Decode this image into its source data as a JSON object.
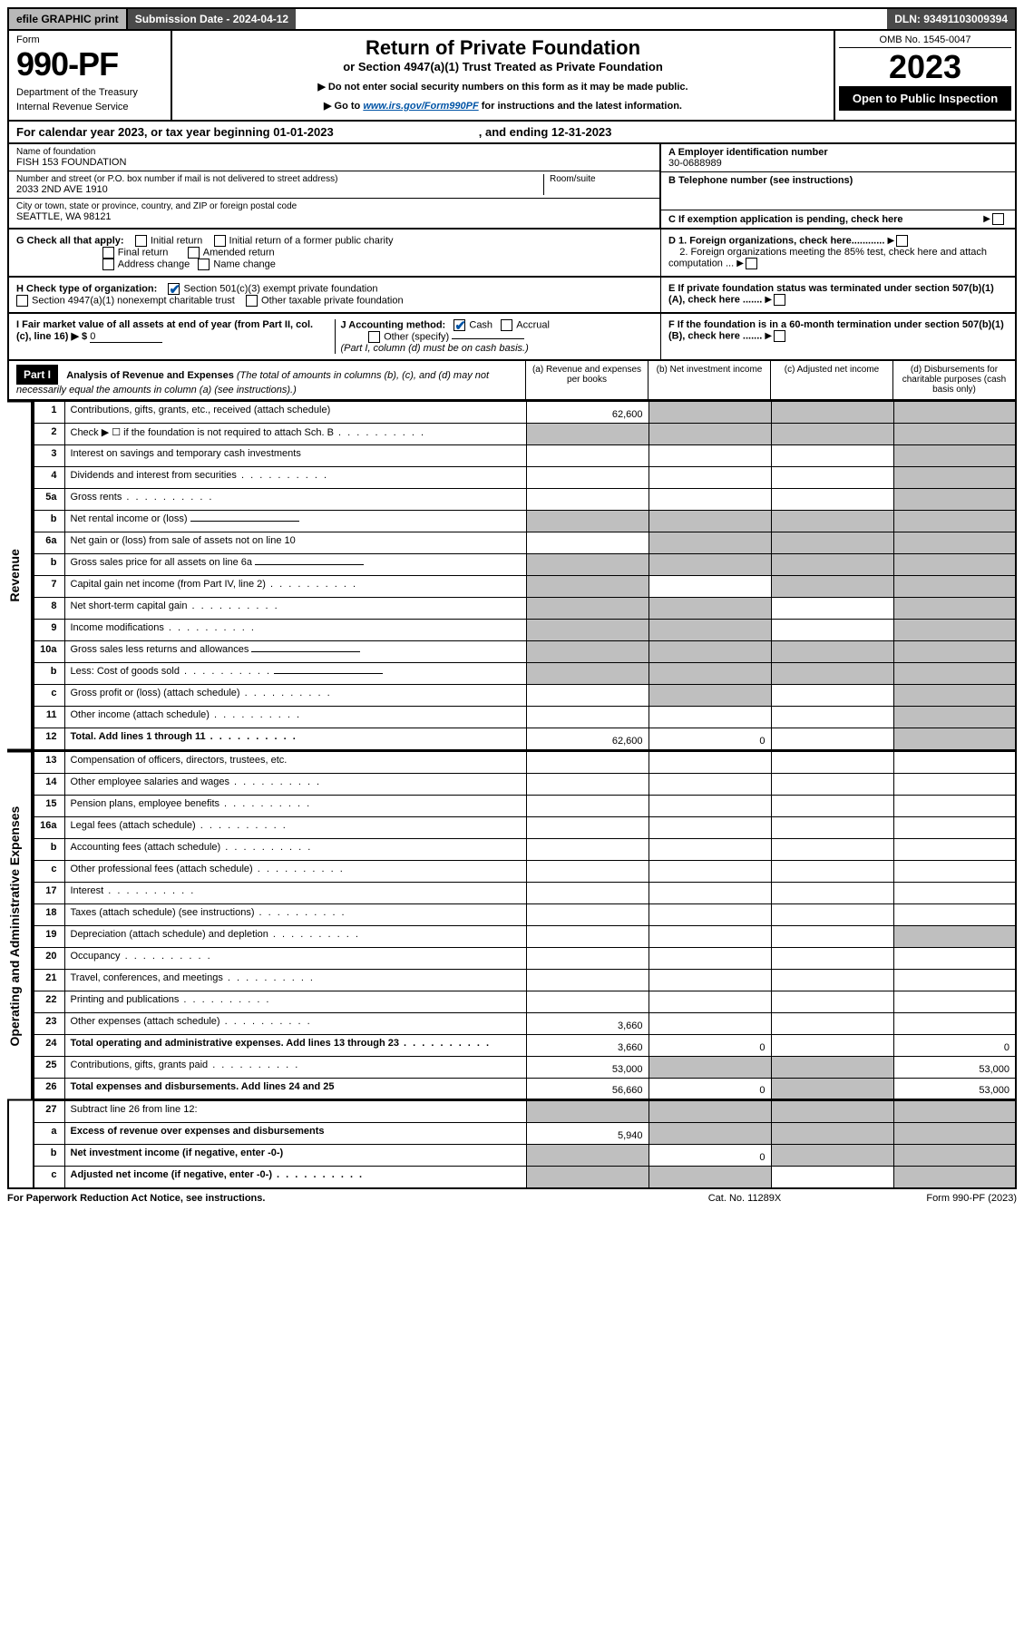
{
  "topbar": {
    "efile": "efile GRAPHIC print",
    "subdate_label": "Submission Date - 2024-04-12",
    "dln": "DLN: 93491103009394"
  },
  "header": {
    "form_label": "Form",
    "form_number": "990-PF",
    "dept": "Department of the Treasury",
    "irs": "Internal Revenue Service",
    "title": "Return of Private Foundation",
    "subtitle": "or Section 4947(a)(1) Trust Treated as Private Foundation",
    "note1": "▶ Do not enter social security numbers on this form as it may be made public.",
    "note2_pre": "▶ Go to ",
    "note2_link": "www.irs.gov/Form990PF",
    "note2_post": " for instructions and the latest information.",
    "omb": "OMB No. 1545-0047",
    "year": "2023",
    "openpub": "Open to Public Inspection"
  },
  "calyear": {
    "pre": "For calendar year 2023, or tax year beginning 01-01-2023",
    "mid": ", and ending 12-31-2023"
  },
  "ident": {
    "name_label": "Name of foundation",
    "name": "FISH 153 FOUNDATION",
    "addr_label": "Number and street (or P.O. box number if mail is not delivered to street address)",
    "addr": "2033 2ND AVE 1910",
    "room_label": "Room/suite",
    "city_label": "City or town, state or province, country, and ZIP or foreign postal code",
    "city": "SEATTLE, WA  98121",
    "a_label": "A Employer identification number",
    "a_val": "30-0688989",
    "b_label": "B Telephone number (see instructions)",
    "c_label": "C If exemption application is pending, check here"
  },
  "opts": {
    "g_label": "G Check all that apply:",
    "g_initial": "Initial return",
    "g_initial_former": "Initial return of a former public charity",
    "g_final": "Final return",
    "g_amended": "Amended return",
    "g_addrchg": "Address change",
    "g_namechg": "Name change",
    "h_label": "H Check type of organization:",
    "h_501c3": "Section 501(c)(3) exempt private foundation",
    "h_4947": "Section 4947(a)(1) nonexempt charitable trust",
    "h_other": "Other taxable private foundation",
    "i_label": "I Fair market value of all assets at end of year (from Part II, col. (c), line 16) ▶ $",
    "i_val": "0",
    "j_label": "J Accounting method:",
    "j_cash": "Cash",
    "j_accrual": "Accrual",
    "j_other": "Other (specify)",
    "j_note": "(Part I, column (d) must be on cash basis.)",
    "d1": "D 1. Foreign organizations, check here............",
    "d2": "2. Foreign organizations meeting the 85% test, check here and attach computation ...",
    "e": "E  If private foundation status was terminated under section 507(b)(1)(A), check here .......",
    "f": "F  If the foundation is in a 60-month termination under section 507(b)(1)(B), check here .......",
    "arrow": "▶"
  },
  "part1": {
    "label": "Part I",
    "title": "Analysis of Revenue and Expenses",
    "note": " (The total of amounts in columns (b), (c), and (d) may not necessarily equal the amounts in column (a) (see instructions).)",
    "col_a": "(a)   Revenue and expenses per books",
    "col_b": "(b)   Net investment income",
    "col_c": "(c)   Adjusted net income",
    "col_d": "(d)   Disbursements for charitable purposes (cash basis only)"
  },
  "sections": {
    "revenue": "Revenue",
    "opex": "Operating and Administrative Expenses"
  },
  "rows": [
    {
      "n": "1",
      "t": "Contributions, gifts, grants, etc., received (attach schedule)",
      "a": "62,600",
      "grey": [
        "b",
        "c",
        "d"
      ]
    },
    {
      "n": "2",
      "t": "Check ▶ ☐ if the foundation is not required to attach Sch. B",
      "dots": true,
      "grey": [
        "a",
        "b",
        "c",
        "d"
      ]
    },
    {
      "n": "3",
      "t": "Interest on savings and temporary cash investments",
      "grey": [
        "d"
      ]
    },
    {
      "n": "4",
      "t": "Dividends and interest from securities",
      "dots": true,
      "grey": [
        "d"
      ]
    },
    {
      "n": "5a",
      "t": "Gross rents",
      "dots": true,
      "grey": [
        "d"
      ]
    },
    {
      "n": "b",
      "t": "Net rental income or (loss)",
      "grey": [
        "a",
        "b",
        "c",
        "d"
      ],
      "ul": true
    },
    {
      "n": "6a",
      "t": "Net gain or (loss) from sale of assets not on line 10",
      "grey": [
        "b",
        "c",
        "d"
      ]
    },
    {
      "n": "b",
      "t": "Gross sales price for all assets on line 6a",
      "grey": [
        "a",
        "b",
        "c",
        "d"
      ],
      "ul": true
    },
    {
      "n": "7",
      "t": "Capital gain net income (from Part IV, line 2)",
      "dots": true,
      "grey": [
        "a",
        "c",
        "d"
      ]
    },
    {
      "n": "8",
      "t": "Net short-term capital gain",
      "dots": true,
      "grey": [
        "a",
        "b",
        "d"
      ]
    },
    {
      "n": "9",
      "t": "Income modifications",
      "dots": true,
      "grey": [
        "a",
        "b",
        "d"
      ]
    },
    {
      "n": "10a",
      "t": "Gross sales less returns and allowances",
      "grey": [
        "a",
        "b",
        "c",
        "d"
      ],
      "ul": true
    },
    {
      "n": "b",
      "t": "Less: Cost of goods sold",
      "dots": true,
      "grey": [
        "a",
        "b",
        "c",
        "d"
      ],
      "ul": true
    },
    {
      "n": "c",
      "t": "Gross profit or (loss) (attach schedule)",
      "dots": true,
      "grey": [
        "b",
        "d"
      ]
    },
    {
      "n": "11",
      "t": "Other income (attach schedule)",
      "dots": true,
      "grey": [
        "d"
      ]
    },
    {
      "n": "12",
      "t": "Total. Add lines 1 through 11",
      "dots": true,
      "bold": true,
      "a": "62,600",
      "b": "0",
      "grey": [
        "d"
      ]
    }
  ],
  "rows2": [
    {
      "n": "13",
      "t": "Compensation of officers, directors, trustees, etc."
    },
    {
      "n": "14",
      "t": "Other employee salaries and wages",
      "dots": true
    },
    {
      "n": "15",
      "t": "Pension plans, employee benefits",
      "dots": true
    },
    {
      "n": "16a",
      "t": "Legal fees (attach schedule)",
      "dots": true
    },
    {
      "n": "b",
      "t": "Accounting fees (attach schedule)",
      "dots": true
    },
    {
      "n": "c",
      "t": "Other professional fees (attach schedule)",
      "dots": true
    },
    {
      "n": "17",
      "t": "Interest",
      "dots": true
    },
    {
      "n": "18",
      "t": "Taxes (attach schedule) (see instructions)",
      "dots": true
    },
    {
      "n": "19",
      "t": "Depreciation (attach schedule) and depletion",
      "dots": true,
      "grey": [
        "d"
      ]
    },
    {
      "n": "20",
      "t": "Occupancy",
      "dots": true
    },
    {
      "n": "21",
      "t": "Travel, conferences, and meetings",
      "dots": true
    },
    {
      "n": "22",
      "t": "Printing and publications",
      "dots": true
    },
    {
      "n": "23",
      "t": "Other expenses (attach schedule)",
      "dots": true,
      "a": "3,660"
    },
    {
      "n": "24",
      "t": "Total operating and administrative expenses. Add lines 13 through 23",
      "dots": true,
      "bold": true,
      "a": "3,660",
      "b": "0",
      "d": "0"
    },
    {
      "n": "25",
      "t": "Contributions, gifts, grants paid",
      "dots": true,
      "a": "53,000",
      "d": "53,000",
      "grey": [
        "b",
        "c"
      ]
    },
    {
      "n": "26",
      "t": "Total expenses and disbursements. Add lines 24 and 25",
      "bold": true,
      "a": "56,660",
      "b": "0",
      "d": "53,000",
      "grey": [
        "c"
      ]
    }
  ],
  "rows3": [
    {
      "n": "27",
      "t": "Subtract line 26 from line 12:",
      "grey": [
        "a",
        "b",
        "c",
        "d"
      ]
    },
    {
      "n": "a",
      "t": "Excess of revenue over expenses and disbursements",
      "bold": true,
      "a": "5,940",
      "grey": [
        "b",
        "c",
        "d"
      ]
    },
    {
      "n": "b",
      "t": "Net investment income (if negative, enter -0-)",
      "bold": true,
      "b": "0",
      "grey": [
        "a",
        "c",
        "d"
      ]
    },
    {
      "n": "c",
      "t": "Adjusted net income (if negative, enter -0-)",
      "bold": true,
      "dots": true,
      "grey": [
        "a",
        "b",
        "d"
      ]
    }
  ],
  "footer": {
    "left": "For Paperwork Reduction Act Notice, see instructions.",
    "mid": "Cat. No. 11289X",
    "right": "Form 990-PF (2023)"
  }
}
